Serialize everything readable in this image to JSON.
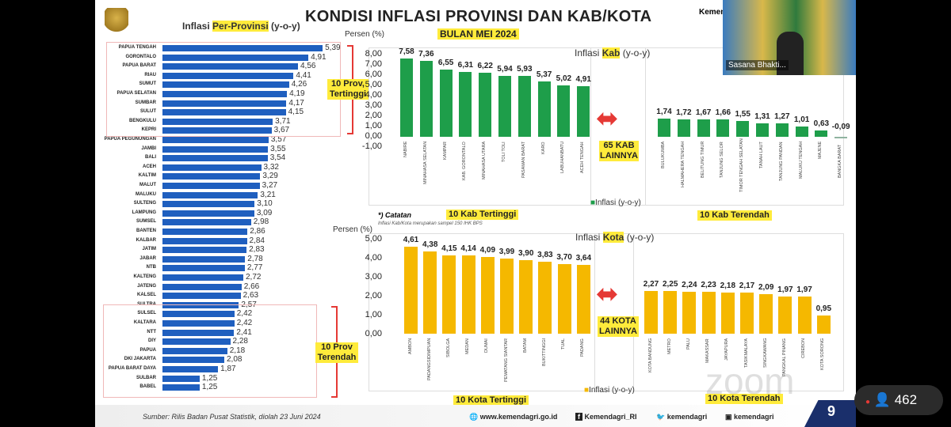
{
  "header": {
    "title": "KONDISI INFLASI PROVINSI DAN KAB/KOTA",
    "subtitle": "BULAN MEI 2024",
    "kemen": "Kemen"
  },
  "prov": {
    "title_pre": "Inflasi ",
    "title_hl": "Per-Provinsi",
    "title_post": " (y-o-y)",
    "top_tag": "10 Prov, Tertinggi",
    "bottom_tag": "10 Prov Terendah",
    "items": [
      [
        "PAPUA TENGAH",
        "5,39",
        5.39
      ],
      [
        "GORONTALO",
        "4,91",
        4.91
      ],
      [
        "PAPUA BARAT",
        "4,56",
        4.56
      ],
      [
        "RIAU",
        "4,41",
        4.41
      ],
      [
        "SUMUT",
        "4,26",
        4.26
      ],
      [
        "PAPUA SELATAN",
        "4,19",
        4.19
      ],
      [
        "SUMBAR",
        "4,17",
        4.17
      ],
      [
        "SULUT",
        "4,15",
        4.15
      ],
      [
        "BENGKULU",
        "3,71",
        3.71
      ],
      [
        "KEPRI",
        "3,67",
        3.67
      ],
      [
        "PAPUA PEGUNUNGAN",
        "3,57",
        3.57
      ],
      [
        "JAMBI",
        "3,55",
        3.55
      ],
      [
        "BALI",
        "3,54",
        3.54
      ],
      [
        "ACEH",
        "3,32",
        3.32
      ],
      [
        "KALTIM",
        "3,29",
        3.29
      ],
      [
        "MALUT",
        "3,27",
        3.27
      ],
      [
        "MALUKU",
        "3,21",
        3.21
      ],
      [
        "SULTENG",
        "3,10",
        3.1
      ],
      [
        "LAMPUNG",
        "3,09",
        3.09
      ],
      [
        "SUMSEL",
        "2,98",
        2.98
      ],
      [
        "BANTEN",
        "2,86",
        2.86
      ],
      [
        "KALBAR",
        "2,84",
        2.84
      ],
      [
        "JATIM",
        "2,83",
        2.83
      ],
      [
        "JABAR",
        "2,78",
        2.78
      ],
      [
        "NTB",
        "2,77",
        2.77
      ],
      [
        "KALTENG",
        "2,72",
        2.72
      ],
      [
        "JATENG",
        "2,66",
        2.66
      ],
      [
        "KALSEL",
        "2,63",
        2.63
      ],
      [
        "SULTRA",
        "2,57",
        2.57
      ],
      [
        "SULSEL",
        "2,42",
        2.42
      ],
      [
        "KALTARA",
        "2,42",
        2.42
      ],
      [
        "NTT",
        "2,41",
        2.41
      ],
      [
        "DIY",
        "2,28",
        2.28
      ],
      [
        "PAPUA",
        "2,18",
        2.18
      ],
      [
        "DKI JAKARTA",
        "2,08",
        2.08
      ],
      [
        "PAPUA BARAT DAYA",
        "1,87",
        1.87
      ],
      [
        "SULBAR",
        "1,25",
        1.25
      ],
      [
        "BABEL",
        "1,25",
        1.25
      ]
    ]
  },
  "kab": {
    "ylabel": "Persen (%)",
    "title_pre": "Inflasi ",
    "title_hl": "Kab",
    "title_post": " (y-o-y)",
    "yticks": [
      "8,00",
      "7,00",
      "6,00",
      "5,00",
      "4,00",
      "3,00",
      "2,00",
      "1,00",
      "0,00",
      "-1,00"
    ],
    "middle": "65 KAB LAINNYA",
    "legend": "Inflasi (y-o-y)",
    "top_tag": "10 Kab Tertinggi",
    "bottom_tag": "10 Kab Terendah",
    "color": "#1e9e4a",
    "top": [
      [
        "NABIRE",
        "7,58",
        7.58
      ],
      [
        "MINAHASA SELATAN",
        "7,36",
        7.36
      ],
      [
        "KAMPAR",
        "6,55",
        6.55
      ],
      [
        "KAB. GORONTALO",
        "6,31",
        6.31
      ],
      [
        "MINAHASA UTARA",
        "6,22",
        6.22
      ],
      [
        "TOLI TOLI",
        "5,94",
        5.94
      ],
      [
        "PASAMAN BARAT",
        "5,93",
        5.93
      ],
      [
        "KARO",
        "5,37",
        5.37
      ],
      [
        "LABUHANBATU",
        "5,02",
        5.02
      ],
      [
        "ACEH TENGAH",
        "4,91",
        4.91
      ]
    ],
    "bottom": [
      [
        "BULUKUMBA",
        "1,74",
        1.74
      ],
      [
        "HALMAHERA TENGAH",
        "1,72",
        1.72
      ],
      [
        "BELITUNG TIMUR",
        "1,67",
        1.67
      ],
      [
        "TANJUNG SELOR",
        "1,66",
        1.66
      ],
      [
        "TIMOR TENGAH SELATAN",
        "1,55",
        1.55
      ],
      [
        "TANAH LAUT",
        "1,31",
        1.31
      ],
      [
        "TANJUNG PANDAN",
        "1,27",
        1.27
      ],
      [
        "MALUKU TENGAH",
        "1,01",
        1.01
      ],
      [
        "MAJENE",
        "0,63",
        0.63
      ],
      [
        "BANGKA BARAT",
        "-0,09",
        -0.09
      ]
    ]
  },
  "note": {
    "title": "*) Catatan",
    "text": "Inflasi Kab/Kota merupakan sampel 150 IHK BPS"
  },
  "kota": {
    "ylabel": "Persen (%)",
    "title_pre": "Inflasi ",
    "title_hl": "Kota",
    "title_post": " (y-o-y)",
    "yticks": [
      "5,00",
      "4,00",
      "3,00",
      "2,00",
      "1,00",
      "0,00"
    ],
    "middle": "44 KOTA LAINNYA",
    "legend": "Inflasi (y-o-y)",
    "top_tag": "10 Kota Tertinggi",
    "bottom_tag": "10 Kota Terendah",
    "color": "#f5b800",
    "top": [
      [
        "AMBON",
        "4,61",
        4.61
      ],
      [
        "PADANGSIDIMPUAN",
        "4,38",
        4.38
      ],
      [
        "SIBOLGA",
        "4,15",
        4.15
      ],
      [
        "MEDAN",
        "4,14",
        4.14
      ],
      [
        "DUMAI",
        "4,09",
        4.09
      ],
      [
        "PEMATANG SIANTAR",
        "3,99",
        3.99
      ],
      [
        "BATAM",
        "3,90",
        3.9
      ],
      [
        "BUKITTINGGI",
        "3,83",
        3.83
      ],
      [
        "TUAL",
        "3,70",
        3.7
      ],
      [
        "PADANG",
        "3,64",
        3.64
      ]
    ],
    "bottom": [
      [
        "KOTA BANDUNG",
        "2,27",
        2.27
      ],
      [
        "METRO",
        "2,25",
        2.25
      ],
      [
        "PALU",
        "2,24",
        2.24
      ],
      [
        "MAKASSAR",
        "2,23",
        2.23
      ],
      [
        "JAYAPURA",
        "2,18",
        2.18
      ],
      [
        "TASIKMALAYA",
        "2,17",
        2.17
      ],
      [
        "SINGKAWANG",
        "2,09",
        2.09
      ],
      [
        "PANGKAL PINANG",
        "1,97",
        1.97
      ],
      [
        "CIREBON",
        "1,97",
        1.97
      ],
      [
        "KOTA SORONG",
        "0,95",
        0.95
      ]
    ]
  },
  "footer": {
    "source": "Sumber: Rilis Badan Pusat Statistik, diolah 23 Juni 2024",
    "web": "www.kemendagri.go.id",
    "fb": "Kemendagri_RI",
    "tw": "kemendagri",
    "ig": "kemendagri",
    "page": "9"
  },
  "zoom": {
    "speaker": "Sasana Bhakti...",
    "participants": "462",
    "watermark": "zoom"
  }
}
